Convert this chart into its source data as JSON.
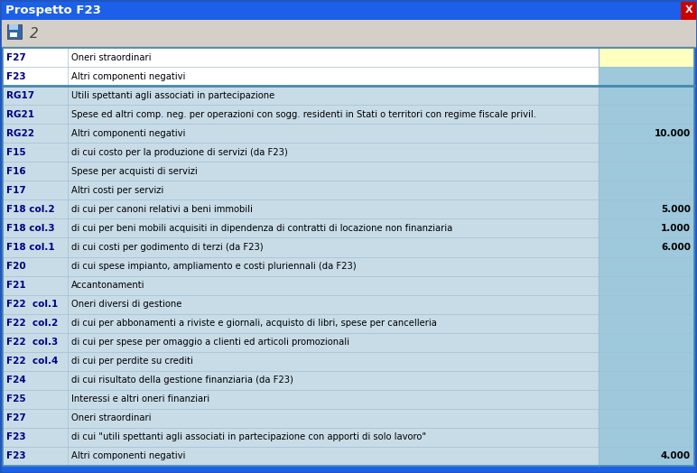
{
  "title": "Prospetto F23",
  "title_bg": "#1c5fe8",
  "title_fg": "#ffffff",
  "toolbar_bg": "#d4d0c8",
  "body_bg": "#b8d4e8",
  "close_btn_bg": "#cc0000",
  "rows": [
    {
      "code": "F27",
      "label": "Oneri straordinari",
      "value": "",
      "code_bg": "#ffffff",
      "label_bg": "#ffffff",
      "val_bg": "#ffffc0"
    },
    {
      "code": "F23",
      "label": "Altri componenti negativi",
      "value": "",
      "code_bg": "#ffffff",
      "label_bg": "#ffffff",
      "val_bg": "#9ec8dc"
    },
    {
      "code": "RG17",
      "label": "Utili spettanti agli associati in partecipazione",
      "value": "",
      "code_bg": "#c8dce8",
      "label_bg": "#c8dce8",
      "val_bg": "#9ec8dc"
    },
    {
      "code": "RG21",
      "label": "Spese ed altri comp. neg. per operazioni con sogg. residenti in Stati o territori con regime fiscale privil.",
      "value": "",
      "code_bg": "#c8dce8",
      "label_bg": "#c8dce8",
      "val_bg": "#9ec8dc"
    },
    {
      "code": "RG22",
      "label": "Altri componenti negativi",
      "value": "10.000",
      "code_bg": "#c8dce8",
      "label_bg": "#c8dce8",
      "val_bg": "#9ec8dc"
    },
    {
      "code": "F15",
      "label": "di cui costo per la produzione di servizi (da F23)",
      "value": "",
      "code_bg": "#c8dce8",
      "label_bg": "#c8dce8",
      "val_bg": "#9ec8dc"
    },
    {
      "code": "F16",
      "label": "Spese per acquisti di servizi",
      "value": "",
      "code_bg": "#c8dce8",
      "label_bg": "#c8dce8",
      "val_bg": "#9ec8dc"
    },
    {
      "code": "F17",
      "label": "Altri costi per servizi",
      "value": "",
      "code_bg": "#c8dce8",
      "label_bg": "#c8dce8",
      "val_bg": "#9ec8dc"
    },
    {
      "code": "F18 col.2",
      "label": "di cui per canoni relativi a beni immobili",
      "value": "5.000",
      "code_bg": "#c8dce8",
      "label_bg": "#c8dce8",
      "val_bg": "#9ec8dc"
    },
    {
      "code": "F18 col.3",
      "label": "di cui per beni mobili acquisiti in dipendenza di contratti di locazione non finanziaria",
      "value": "1.000",
      "code_bg": "#c8dce8",
      "label_bg": "#c8dce8",
      "val_bg": "#9ec8dc"
    },
    {
      "code": "F18 col.1",
      "label": "di cui costi per godimento di terzi (da F23)",
      "value": "6.000",
      "code_bg": "#c8dce8",
      "label_bg": "#c8dce8",
      "val_bg": "#9ec8dc"
    },
    {
      "code": "F20",
      "label": "di cui spese impianto, ampliamento e costi pluriennali (da F23)",
      "value": "",
      "code_bg": "#c8dce8",
      "label_bg": "#c8dce8",
      "val_bg": "#9ec8dc"
    },
    {
      "code": "F21",
      "label": "Accantonamenti",
      "value": "",
      "code_bg": "#c8dce8",
      "label_bg": "#c8dce8",
      "val_bg": "#9ec8dc"
    },
    {
      "code": "F22  col.1",
      "label": "Oneri diversi di gestione",
      "value": "",
      "code_bg": "#c8dce8",
      "label_bg": "#c8dce8",
      "val_bg": "#9ec8dc"
    },
    {
      "code": "F22  col.2",
      "label": "di cui per abbonamenti a riviste e giornali, acquisto di libri, spese per cancelleria",
      "value": "",
      "code_bg": "#c8dce8",
      "label_bg": "#c8dce8",
      "val_bg": "#9ec8dc"
    },
    {
      "code": "F22  col.3",
      "label": "di cui per spese per omaggio a clienti ed articoli promozionali",
      "value": "",
      "code_bg": "#c8dce8",
      "label_bg": "#c8dce8",
      "val_bg": "#9ec8dc"
    },
    {
      "code": "F22  col.4",
      "label": "di cui per perdite su crediti",
      "value": "",
      "code_bg": "#c8dce8",
      "label_bg": "#c8dce8",
      "val_bg": "#9ec8dc"
    },
    {
      "code": "F24",
      "label": "di cui risultato della gestione finanziaria (da F23)",
      "value": "",
      "code_bg": "#c8dce8",
      "label_bg": "#c8dce8",
      "val_bg": "#9ec8dc"
    },
    {
      "code": "F25",
      "label": "Interessi e altri oneri finanziari",
      "value": "",
      "code_bg": "#c8dce8",
      "label_bg": "#c8dce8",
      "val_bg": "#9ec8dc"
    },
    {
      "code": "F27",
      "label": "Oneri straordinari",
      "value": "",
      "code_bg": "#c8dce8",
      "label_bg": "#c8dce8",
      "val_bg": "#9ec8dc"
    },
    {
      "code": "F23",
      "label": "di cui \"utili spettanti agli associati in partecipazione con apporti di solo lavoro\"",
      "value": "",
      "code_bg": "#c8dce8",
      "label_bg": "#c8dce8",
      "val_bg": "#9ec8dc"
    },
    {
      "code": "F23",
      "label": "Altri componenti negativi",
      "value": "4.000",
      "code_bg": "#c8dce8",
      "label_bg": "#c8dce8",
      "val_bg": "#9ec8dc"
    }
  ],
  "frame_border": "#2255bb",
  "row_divider": "#a0bfd0",
  "thick_divider": "#4488aa",
  "col_divider": "#a0bfd0",
  "code_text": "#000080",
  "label_text": "#000000",
  "value_text": "#000000",
  "title_fontsize": 9.5,
  "code_fontsize": 7.5,
  "label_fontsize": 7.2,
  "value_fontsize": 7.5
}
